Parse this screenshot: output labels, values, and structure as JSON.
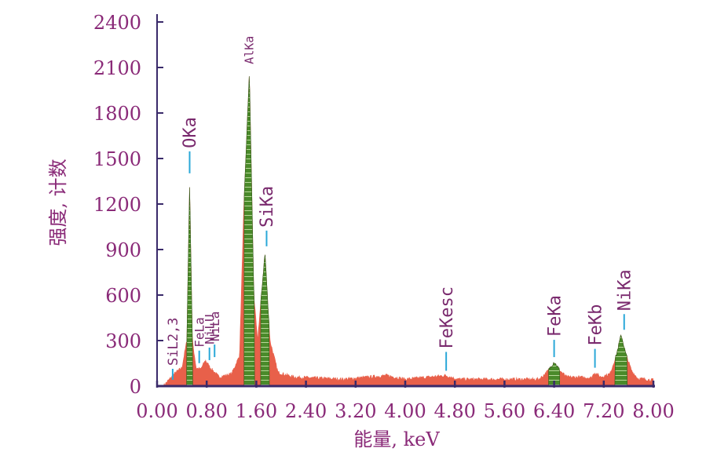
{
  "colors": {
    "axis": "#3a2a6a",
    "text": "#8a2a78",
    "background_spectrum": "#e8604a",
    "peak_fill": "#4a8a2a",
    "peak_stripe": "#b8d89a",
    "leader": "#2aa8d8",
    "peak_label": "#7a2a6e"
  },
  "chart_data": {
    "type": "area",
    "title": "",
    "xlabel": "能量, keV",
    "ylabel": "强度, 计数",
    "xlim": [
      0,
      8
    ],
    "ylim": [
      0,
      2400
    ],
    "x_ticks": [
      0,
      0.8,
      1.6,
      2.4,
      3.2,
      4.0,
      4.8,
      5.6,
      6.4,
      7.2,
      8.0
    ],
    "x_tick_labels": [
      "0.00",
      "0.80",
      "1.60",
      "2.40",
      "3.20",
      "4.00",
      "4.80",
      "5.60",
      "6.40",
      "7.20",
      "8.00"
    ],
    "y_ticks": [
      0,
      300,
      600,
      900,
      1200,
      1500,
      1800,
      2100,
      2400
    ],
    "y_tick_labels": [
      "0",
      "300",
      "600",
      "900",
      "1200",
      "1500",
      "1800",
      "2100",
      "2400"
    ],
    "background_level": 40,
    "series": [
      {
        "points": [
          [
            0.1,
            0
          ],
          [
            0.3,
            90
          ],
          [
            0.4,
            120
          ],
          [
            0.48,
            300
          ],
          [
            0.525,
            1330
          ],
          [
            0.57,
            300
          ],
          [
            0.63,
            120
          ],
          [
            0.7,
            110
          ],
          [
            0.78,
            170
          ],
          [
            0.86,
            120
          ],
          [
            1.0,
            60
          ],
          [
            1.2,
            80
          ],
          [
            1.33,
            200
          ],
          [
            1.4,
            1200
          ],
          [
            1.487,
            2070
          ],
          [
            1.56,
            600
          ],
          [
            1.62,
            300
          ],
          [
            1.74,
            880
          ],
          [
            1.82,
            300
          ],
          [
            1.95,
            90
          ],
          [
            2.2,
            60
          ],
          [
            3.0,
            45
          ],
          [
            3.7,
            70
          ],
          [
            4.0,
            45
          ],
          [
            4.65,
            70
          ],
          [
            4.85,
            45
          ],
          [
            6.15,
            45
          ],
          [
            6.2,
            60
          ],
          [
            6.3,
            100
          ],
          [
            6.4,
            160
          ],
          [
            6.5,
            100
          ],
          [
            6.6,
            60
          ],
          [
            7.0,
            55
          ],
          [
            7.05,
            90
          ],
          [
            7.15,
            60
          ],
          [
            7.3,
            80
          ],
          [
            7.4,
            200
          ],
          [
            7.48,
            340
          ],
          [
            7.55,
            220
          ],
          [
            7.65,
            100
          ],
          [
            7.75,
            50
          ],
          [
            8.0,
            40
          ]
        ]
      }
    ],
    "peaks": [
      {
        "label": "SiL2,3",
        "energy": 0.1,
        "intensity": 0
      },
      {
        "label": "OKa",
        "energy": 0.525,
        "intensity": 1330
      },
      {
        "label": "FeLa",
        "energy": 0.705,
        "intensity": 120
      },
      {
        "label": "NiLU",
        "energy": 0.743,
        "intensity": 140
      },
      {
        "label": "NiLa",
        "energy": 0.851,
        "intensity": 160
      },
      {
        "label": "AlKa",
        "energy": 1.487,
        "intensity": 2070
      },
      {
        "label": "SiKa",
        "energy": 1.74,
        "intensity": 880
      },
      {
        "label": "FeKesc",
        "energy": 4.66,
        "intensity": 70
      },
      {
        "label": "FeKa",
        "energy": 6.4,
        "intensity": 160
      },
      {
        "label": "FeKb",
        "energy": 7.058,
        "intensity": 90
      },
      {
        "label": "NiKa",
        "energy": 7.478,
        "intensity": 340
      }
    ]
  }
}
